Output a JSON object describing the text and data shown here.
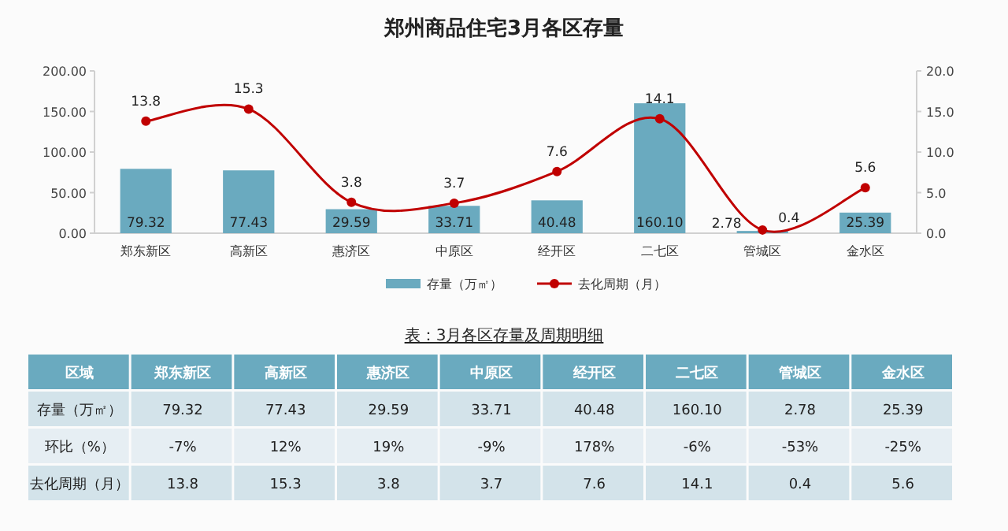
{
  "chart_data": [
    {
      "type": "bar",
      "title": "郑州商品住宅3月各区存量",
      "categories": [
        "郑东新区",
        "高新区",
        "惠济区",
        "中原区",
        "经开区",
        "二七区",
        "管城区",
        "金水区"
      ],
      "series": [
        {
          "name": "存量（万㎡）",
          "type": "bar",
          "color": "#6aaabf",
          "values": [
            79.32,
            77.43,
            29.59,
            33.71,
            40.48,
            160.1,
            2.78,
            25.39
          ],
          "value_labels": [
            "79.32",
            "77.43",
            "29.59",
            "33.71",
            "40.48",
            "160.10",
            "2.78",
            "25.39"
          ]
        },
        {
          "name": "去化周期（月）",
          "type": "line",
          "axis": "y2",
          "color": "#c00000",
          "marker": "circle",
          "values": [
            13.8,
            15.3,
            3.8,
            3.7,
            7.6,
            14.1,
            0.4,
            5.6
          ],
          "value_labels": [
            "13.8",
            "15.3",
            "3.8",
            "3.7",
            "7.6",
            "14.1",
            "0.4",
            "5.6"
          ]
        }
      ],
      "ylim": [
        0,
        200
      ],
      "yticks": [
        {
          "value": 0,
          "label": "0.00"
        },
        {
          "value": 50,
          "label": "50.00"
        },
        {
          "value": 100,
          "label": "100.00"
        },
        {
          "value": 150,
          "label": "150.00"
        },
        {
          "value": 200,
          "label": "200.00"
        }
      ],
      "y2lim": [
        0,
        20
      ],
      "y2ticks": [
        {
          "value": 0,
          "label": "0.0"
        },
        {
          "value": 5,
          "label": "5.0"
        },
        {
          "value": 10,
          "label": "10.0"
        },
        {
          "value": 15,
          "label": "15.0"
        },
        {
          "value": 20,
          "label": "20.0"
        }
      ],
      "legend": "bottom",
      "grid": false
    },
    {
      "type": "other",
      "title": "表：3月各区存量及周期明细",
      "annotations": [
        "区域"
      ],
      "categories": [
        "郑东新区",
        "高新区",
        "惠济区",
        "中原区",
        "经开区",
        "二七区",
        "管城区",
        "金水区"
      ],
      "series": [
        {
          "name": "存量（万㎡）",
          "values": [
            79.32,
            77.43,
            29.59,
            33.71,
            40.48,
            160.1,
            2.78,
            25.39
          ],
          "value_labels": [
            "79.32",
            "77.43",
            "29.59",
            "33.71",
            "40.48",
            "160.10",
            "2.78",
            "25.39"
          ]
        },
        {
          "name": "环比（%）",
          "values": [
            -7,
            12,
            19,
            -9,
            178,
            -6,
            -53,
            -25
          ],
          "value_labels": [
            "-7%",
            "12%",
            "19%",
            "-9%",
            "178%",
            "-6%",
            "-53%",
            "-25%"
          ]
        },
        {
          "name": "去化周期（月）",
          "values": [
            13.8,
            15.3,
            3.8,
            3.7,
            7.6,
            14.1,
            0.4,
            5.6
          ],
          "value_labels": [
            "13.8",
            "15.3",
            "3.8",
            "3.7",
            "7.6",
            "14.1",
            "0.4",
            "5.6"
          ]
        }
      ]
    }
  ]
}
